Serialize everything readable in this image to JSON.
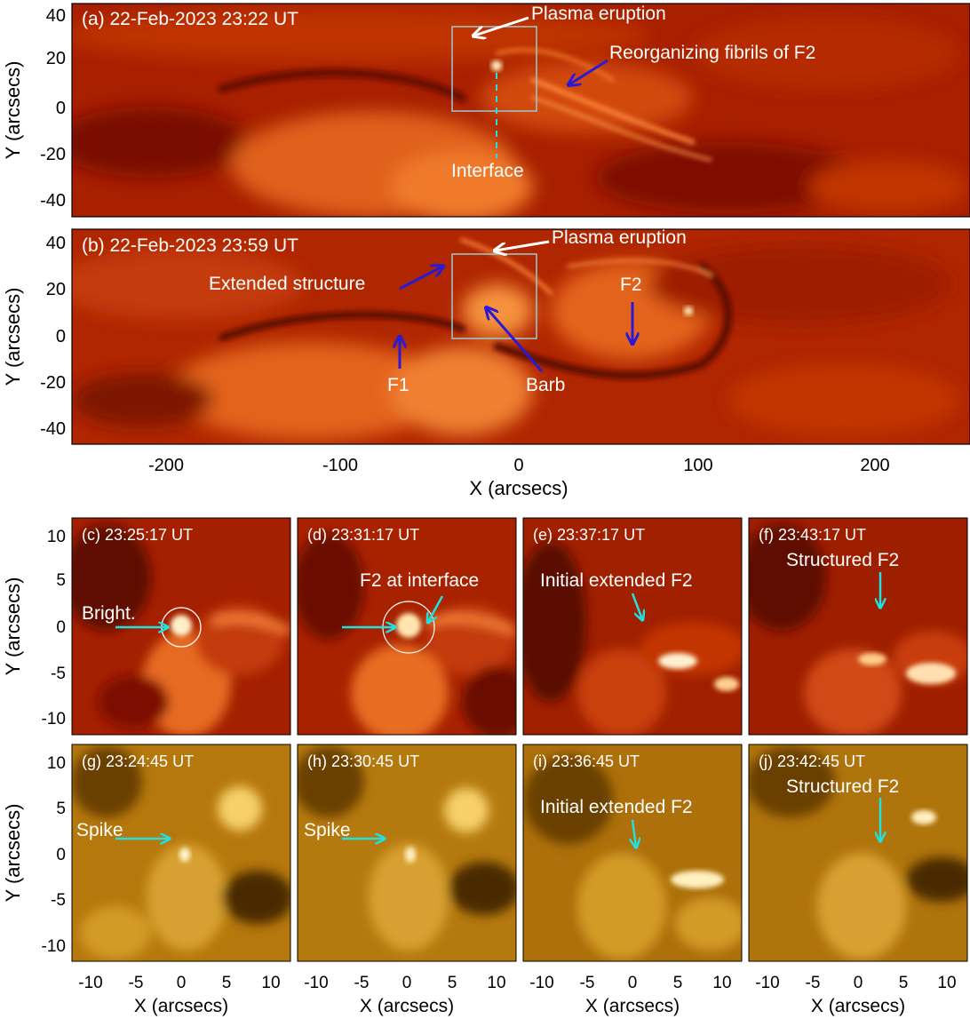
{
  "panels_top": [
    {
      "id": "a",
      "title": "(a) 22-Feb-2023 23:22 UT",
      "labels": {
        "eruption": "Plasma eruption",
        "fibrils": "Reorganizing fibrils of F2",
        "interface": "Interface"
      }
    },
    {
      "id": "b",
      "title": "(b) 22-Feb-2023 23:59 UT",
      "labels": {
        "eruption": "Plasma eruption",
        "extended": "Extended structure",
        "f2": "F2",
        "f1": "F1",
        "barb": "Barb"
      }
    }
  ],
  "panels_small": [
    {
      "id": "c",
      "title": "(c) 23:25:17 UT",
      "label": "Bright.",
      "channel": "red"
    },
    {
      "id": "d",
      "title": "(d) 23:31:17 UT",
      "label": "F2 at interface",
      "channel": "red"
    },
    {
      "id": "e",
      "title": "(e) 23:37:17 UT",
      "label": "Initial extended F2",
      "channel": "red"
    },
    {
      "id": "f",
      "title": "(f) 23:43:17 UT",
      "label": "Structured F2",
      "channel": "red"
    },
    {
      "id": "g",
      "title": "(g) 23:24:45 UT",
      "label": "Spike",
      "channel": "gold"
    },
    {
      "id": "h",
      "title": "(h) 23:30:45 UT",
      "label": "Spike",
      "channel": "gold"
    },
    {
      "id": "i",
      "title": "(i) 23:36:45 UT",
      "label": "Initial extended F2",
      "channel": "gold"
    },
    {
      "id": "j",
      "title": "(j) 23:42:45 UT",
      "label": "Structured F2",
      "channel": "gold"
    }
  ],
  "axes": {
    "top_ylabel": "Y (arcsecs)",
    "top_xlabel": "X (arcsecs)",
    "top_yticks": [
      "40",
      "20",
      "0",
      "-20",
      "-40"
    ],
    "top_xticks": [
      "-200",
      "-100",
      "0",
      "100",
      "200"
    ],
    "small_ylabel": "Y (arcsecs)",
    "small_xlabel": "X (arcsecs)",
    "small_yticks": [
      "10",
      "5",
      "0",
      "-5",
      "-10"
    ],
    "small_xticks": [
      "-10",
      "-5",
      "0",
      "5",
      "10"
    ]
  },
  "colors": {
    "red_base": "#b32400",
    "red_dark": "#5e0a00",
    "red_bright": "#ff9a4d",
    "gold_base": "#c98a0e",
    "gold_dark": "#4a2c02",
    "gold_bright": "#ffe9a6",
    "cyan": "#22e0e0",
    "blue": "#2a1ad6",
    "white": "#ffffff"
  }
}
